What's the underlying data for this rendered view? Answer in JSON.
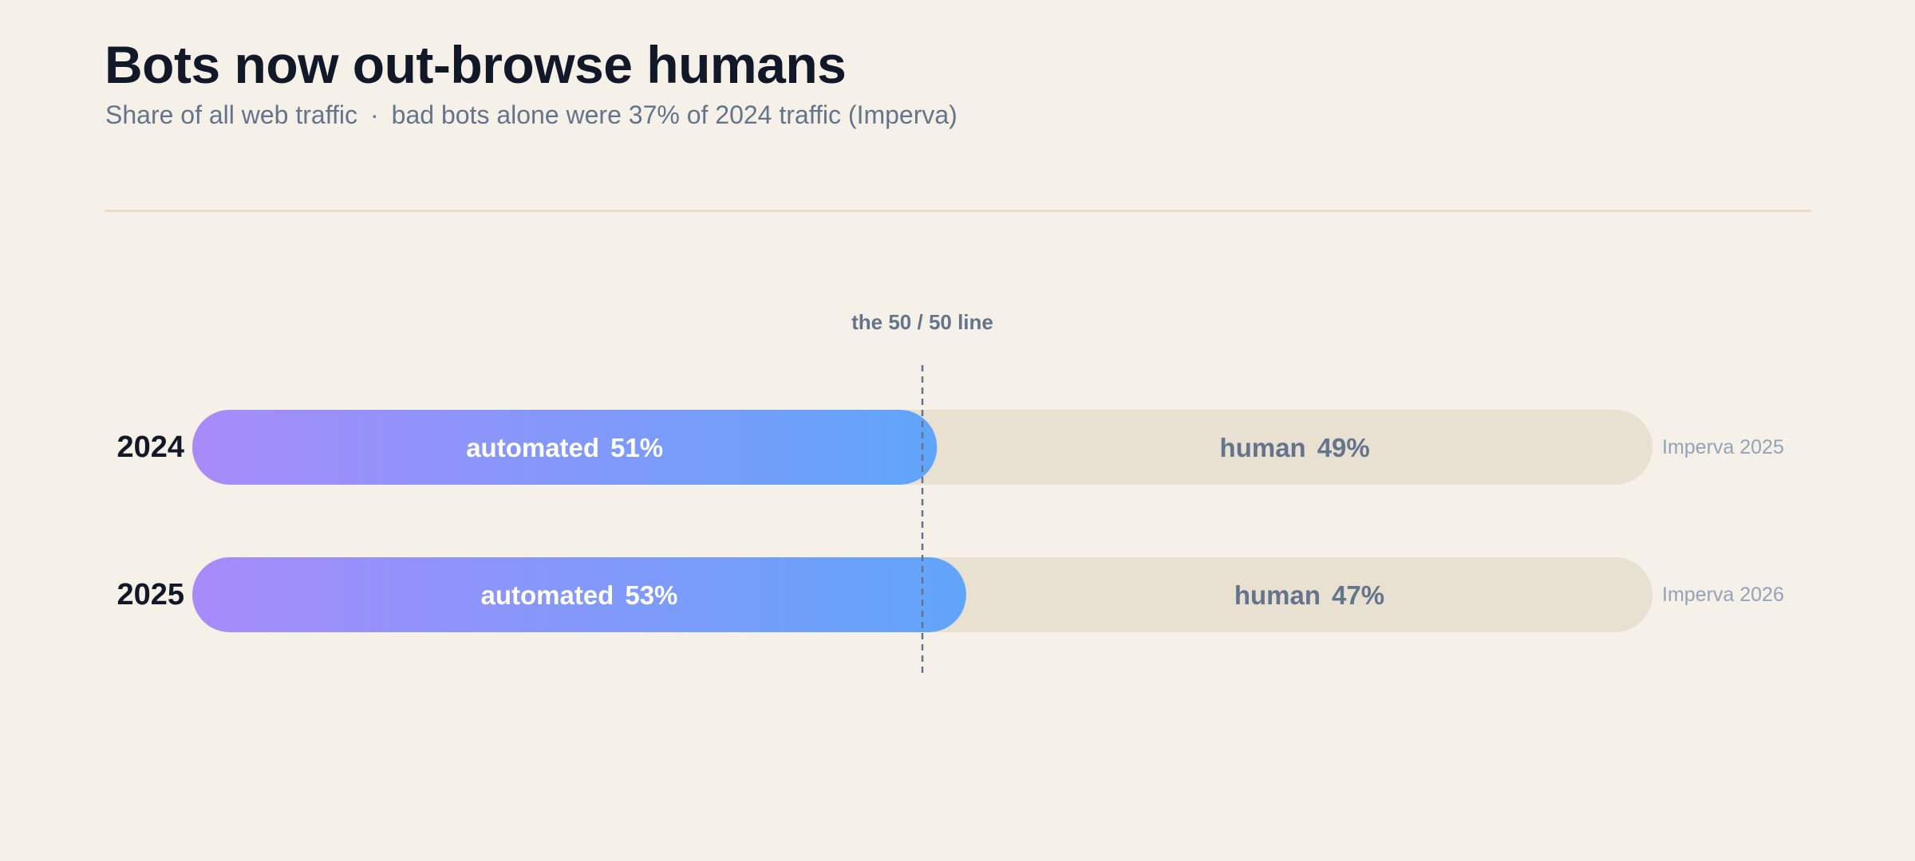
{
  "header": {
    "title": "Bots now out-browse humans",
    "subtitle_main": "Share of all web traffic",
    "subtitle_sep": "·",
    "subtitle_note": "bad bots alone were 37% of 2024 traffic (Imperva)"
  },
  "chart_data": {
    "type": "bar",
    "orientation": "horizontal",
    "stacked": true,
    "normalized": true,
    "categories": [
      "2024",
      "2025"
    ],
    "series": [
      {
        "name": "automated",
        "values": [
          51,
          53
        ],
        "unit": "%"
      },
      {
        "name": "human",
        "values": [
          49,
          47
        ],
        "unit": "%"
      }
    ],
    "sources": [
      "Imperva 2025",
      "Imperva 2026"
    ],
    "xlim": [
      0,
      100
    ],
    "reference_line": {
      "value": 50,
      "label": "the 50 / 50 line"
    },
    "colors": {
      "automated_start": "#a78bfa",
      "automated_end": "#60a5fa",
      "human": "#e8e0d0",
      "reference_line": "#64748b"
    }
  }
}
